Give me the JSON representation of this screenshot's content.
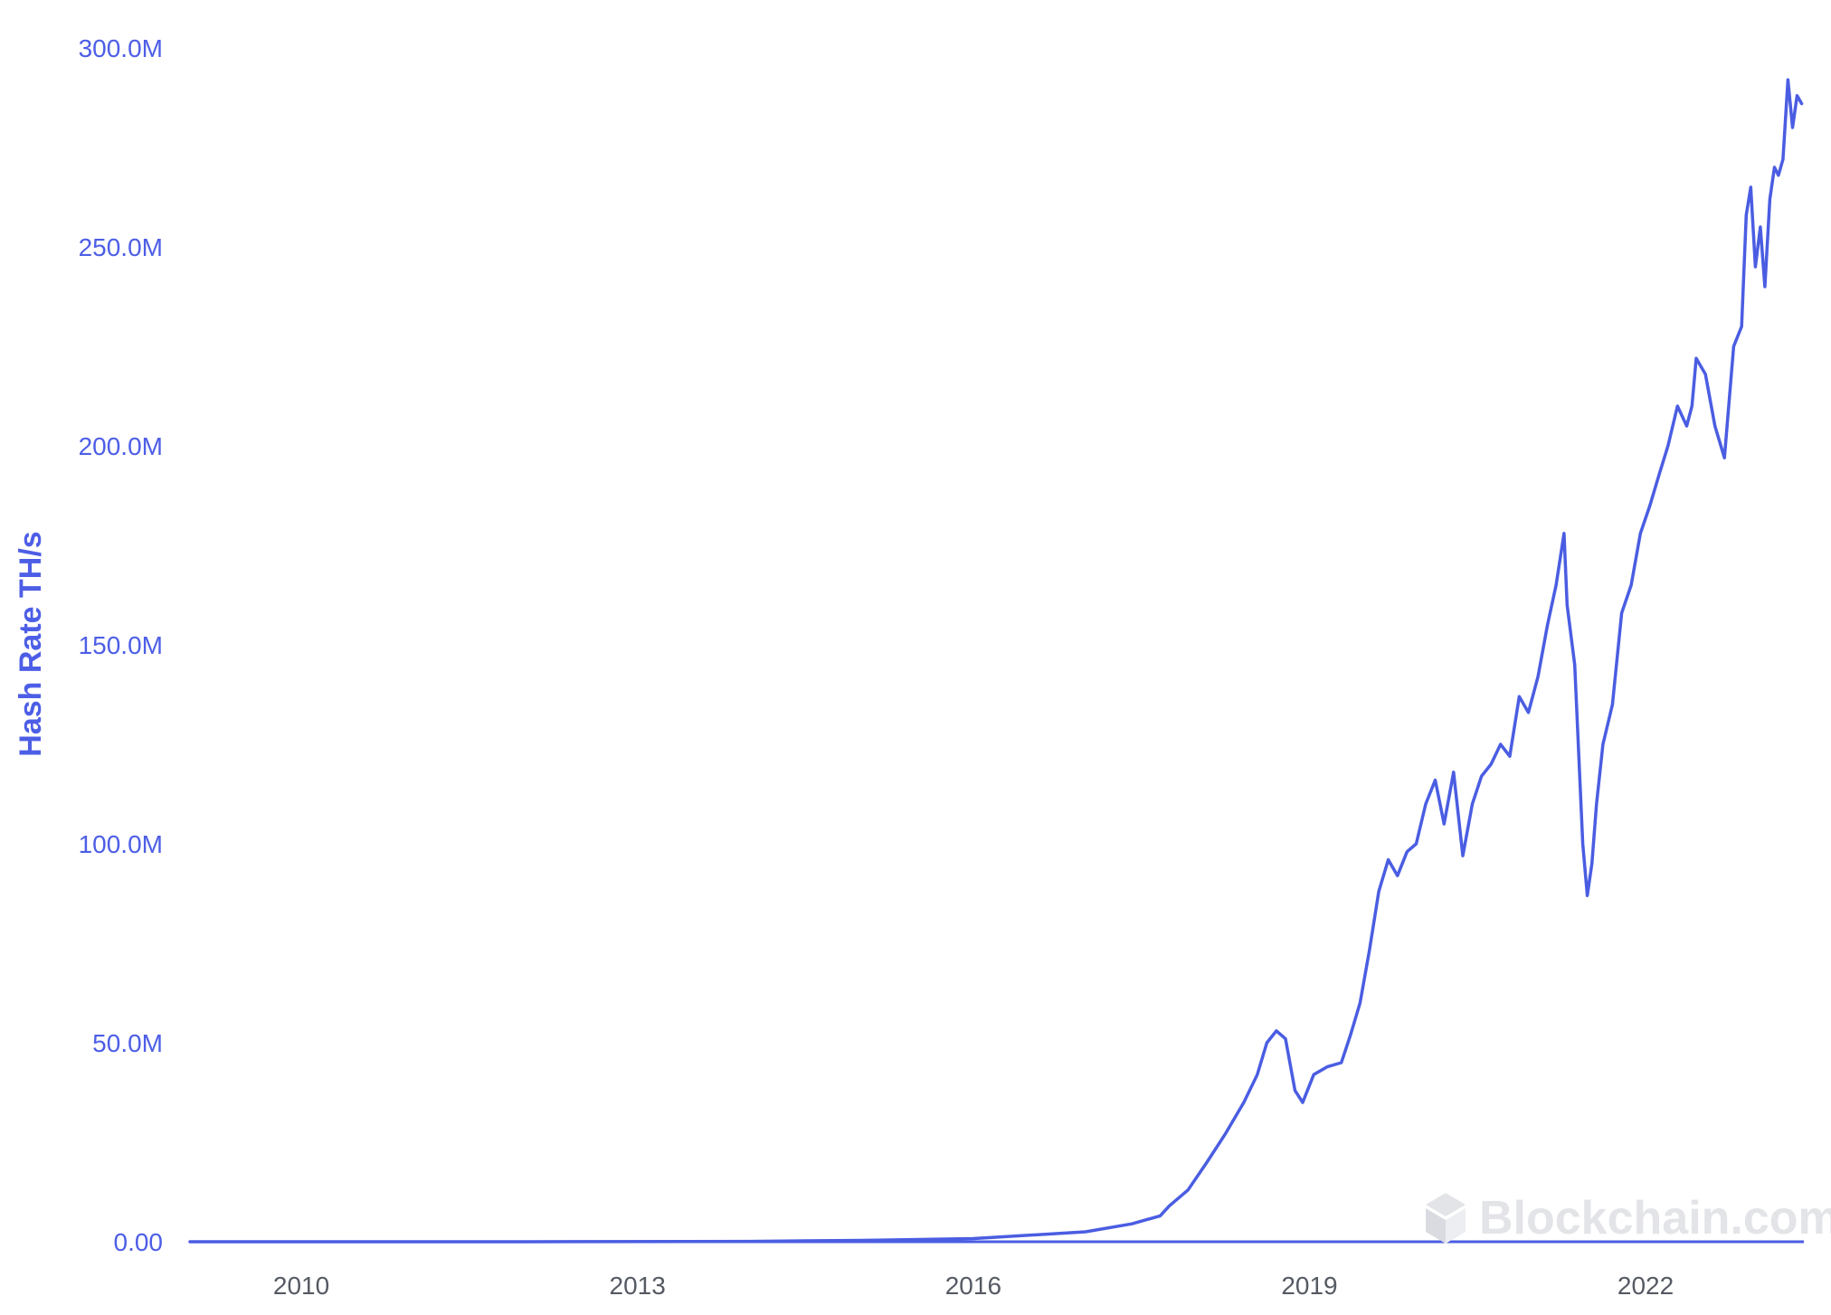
{
  "chart_data": {
    "type": "line",
    "title": "",
    "xlabel": "",
    "ylabel": "Hash Rate TH/s",
    "ylim": [
      0,
      300000000
    ],
    "xlim": [
      "2009-01-03",
      "2023-06-01"
    ],
    "y_ticks": [
      {
        "value": 0,
        "label": "0.00"
      },
      {
        "value": 50000000,
        "label": "50.0M"
      },
      {
        "value": 100000000,
        "label": "100.0M"
      },
      {
        "value": 150000000,
        "label": "150.0M"
      },
      {
        "value": 200000000,
        "label": "200.0M"
      },
      {
        "value": 250000000,
        "label": "250.0M"
      },
      {
        "value": 300000000,
        "label": "300.0M"
      }
    ],
    "x_ticks": [
      {
        "value": "2010-01-01",
        "label": "2010"
      },
      {
        "value": "2013-01-01",
        "label": "2013"
      },
      {
        "value": "2016-01-01",
        "label": "2016"
      },
      {
        "value": "2019-01-01",
        "label": "2019"
      },
      {
        "value": "2022-01-01",
        "label": "2022"
      }
    ],
    "grid": false,
    "legend": "none",
    "series": [
      {
        "color": "#4a5de2",
        "x": [
          "2009-01-03",
          "2012-01-01",
          "2014-01-01",
          "2015-01-01",
          "2016-01-01",
          "2016-06-01",
          "2017-01-01",
          "2017-06-01",
          "2017-09-01",
          "2017-10-01",
          "2017-12-01",
          "2018-02-01",
          "2018-04-01",
          "2018-06-01",
          "2018-07-15",
          "2018-08-15",
          "2018-09-15",
          "2018-10-15",
          "2018-11-15",
          "2018-12-10",
          "2019-01-15",
          "2019-03-01",
          "2019-04-15",
          "2019-05-15",
          "2019-06-15",
          "2019-07-15",
          "2019-08-15",
          "2019-09-15",
          "2019-10-15",
          "2019-11-15",
          "2019-12-15",
          "2020-01-15",
          "2020-02-15",
          "2020-03-15",
          "2020-04-15",
          "2020-05-15",
          "2020-06-15",
          "2020-07-15",
          "2020-08-15",
          "2020-09-15",
          "2020-10-15",
          "2020-11-15",
          "2020-12-15",
          "2021-01-15",
          "2021-02-15",
          "2021-03-15",
          "2021-04-10",
          "2021-04-20",
          "2021-05-15",
          "2021-06-10",
          "2021-06-25",
          "2021-07-10",
          "2021-07-25",
          "2021-08-15",
          "2021-09-15",
          "2021-10-15",
          "2021-11-15",
          "2021-12-15",
          "2022-01-15",
          "2022-02-15",
          "2022-03-15",
          "2022-04-15",
          "2022-05-15",
          "2022-06-01",
          "2022-06-15",
          "2022-07-15",
          "2022-08-15",
          "2022-09-15",
          "2022-10-15",
          "2022-11-10",
          "2022-11-25",
          "2022-12-10",
          "2022-12-25",
          "2023-01-10",
          "2023-01-25",
          "2023-02-10",
          "2023-02-25",
          "2023-03-10",
          "2023-03-25",
          "2023-04-10",
          "2023-04-25",
          "2023-05-10",
          "2023-05-25"
        ],
        "y": [
          0,
          5000,
          100000,
          350000,
          800000,
          1500000,
          2500000,
          4500000,
          6500000,
          9000000,
          13000000,
          20000000,
          27000000,
          35000000,
          42000000,
          50000000,
          53000000,
          51000000,
          38000000,
          35000000,
          42000000,
          44000000,
          45000000,
          52000000,
          60000000,
          73000000,
          88000000,
          96000000,
          92000000,
          98000000,
          100000000,
          110000000,
          116000000,
          105000000,
          118000000,
          97000000,
          110000000,
          117000000,
          120000000,
          125000000,
          122000000,
          137000000,
          133000000,
          142000000,
          155000000,
          165000000,
          178000000,
          160000000,
          145000000,
          100000000,
          87000000,
          95000000,
          110000000,
          125000000,
          135000000,
          158000000,
          165000000,
          178000000,
          185000000,
          193000000,
          200000000,
          210000000,
          205000000,
          210000000,
          222000000,
          218000000,
          205000000,
          197000000,
          225000000,
          230000000,
          258000000,
          265000000,
          245000000,
          255000000,
          240000000,
          262000000,
          270000000,
          268000000,
          272000000,
          292000000,
          280000000,
          288000000,
          286000000
        ]
      }
    ]
  },
  "watermark": {
    "icon": "blockchain-logo-icon",
    "text": "Blockchain.com"
  }
}
